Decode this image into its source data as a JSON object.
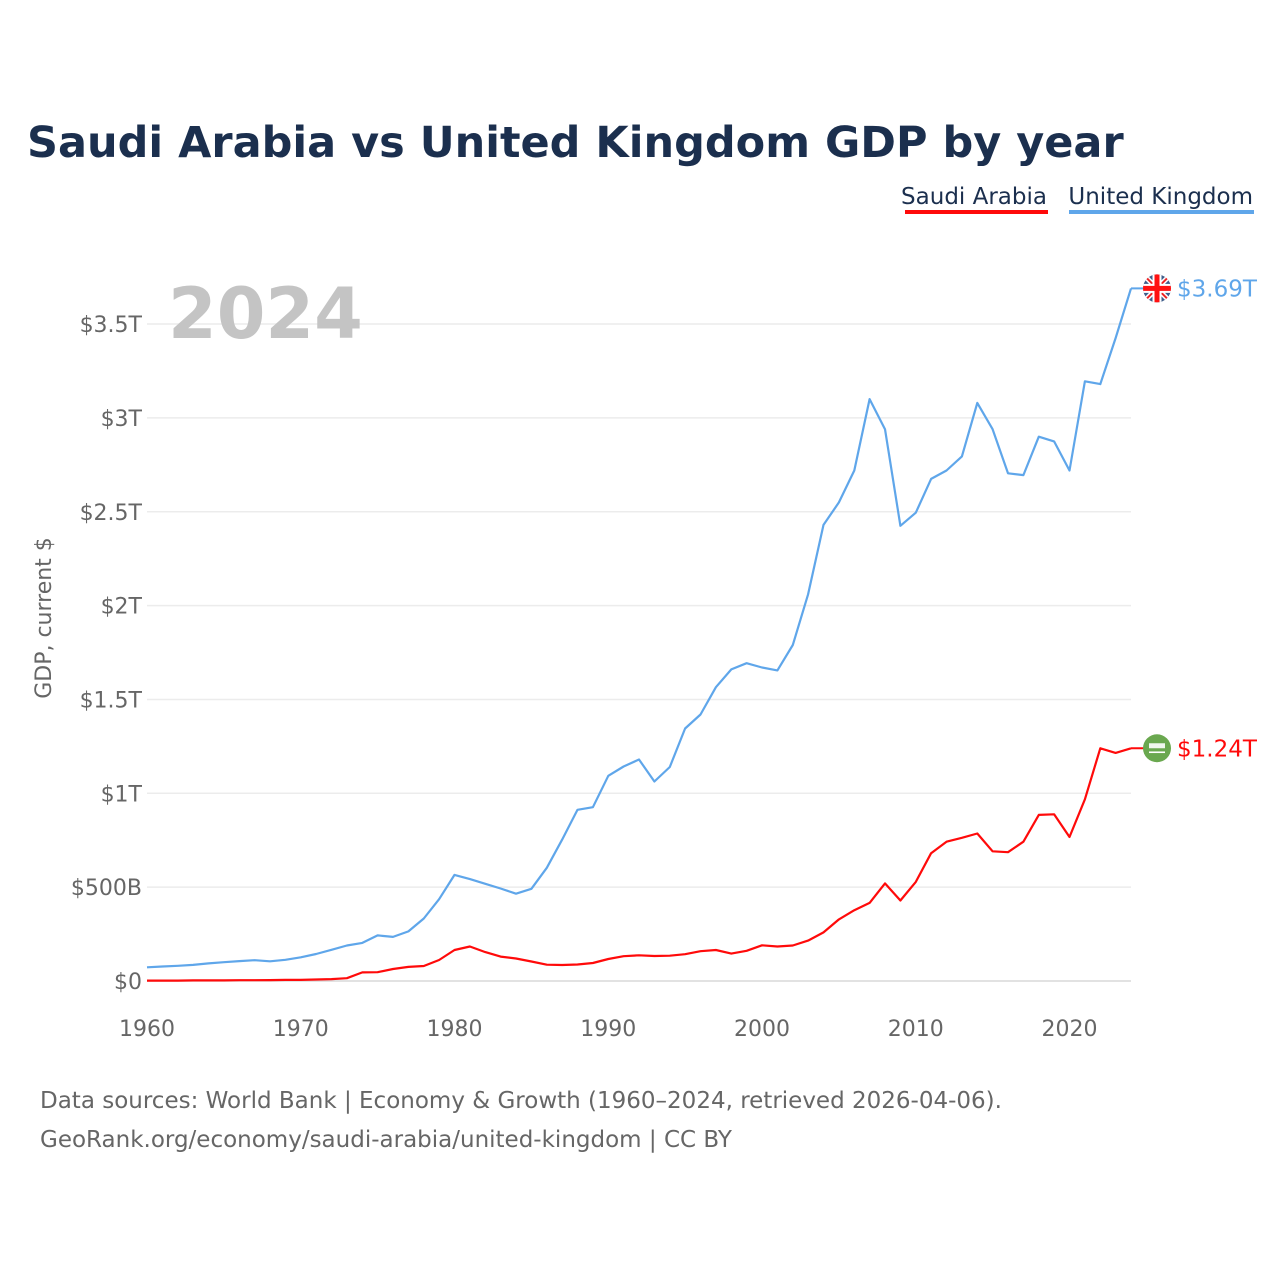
{
  "chart_data": {
    "type": "line",
    "title": "Saudi Arabia vs United Kingdom GDP by year",
    "xlabel": "",
    "ylabel": "GDP, current $",
    "xlim": [
      1960,
      2024
    ],
    "ylim": [
      0,
      3.5
    ],
    "y_unit": "trillion USD",
    "grid": true,
    "legend_placement": "top-right",
    "year_label": "2024",
    "x_ticks": [
      1960,
      1970,
      1980,
      1990,
      2000,
      2010,
      2020
    ],
    "x_tick_labels": [
      "1960",
      "1970",
      "1980",
      "1990",
      "2000",
      "2010",
      "2020"
    ],
    "y_ticks": [
      0,
      0.5,
      1,
      1.5,
      2,
      2.5,
      3,
      3.5
    ],
    "y_tick_labels": [
      "$0",
      "$500B",
      "$1T",
      "$1.5T",
      "$2T",
      "$2.5T",
      "$3T",
      "$3.5T"
    ],
    "x": [
      1960,
      1961,
      1962,
      1963,
      1964,
      1965,
      1966,
      1967,
      1968,
      1969,
      1970,
      1971,
      1972,
      1973,
      1974,
      1975,
      1976,
      1977,
      1978,
      1979,
      1980,
      1981,
      1982,
      1983,
      1984,
      1985,
      1986,
      1987,
      1988,
      1989,
      1990,
      1991,
      1992,
      1993,
      1994,
      1995,
      1996,
      1997,
      1998,
      1999,
      2000,
      2001,
      2002,
      2003,
      2004,
      2005,
      2006,
      2007,
      2008,
      2009,
      2010,
      2011,
      2012,
      2013,
      2014,
      2015,
      2016,
      2017,
      2018,
      2019,
      2020,
      2021,
      2022,
      2023,
      2024
    ],
    "series": [
      {
        "name": "Saudi Arabia",
        "color": "#ff0a0a",
        "end_label": "$1.24T",
        "flag_icon": "saudi-flag",
        "values": [
          0.002,
          0.002,
          0.002,
          0.003,
          0.003,
          0.003,
          0.004,
          0.004,
          0.005,
          0.006,
          0.006,
          0.008,
          0.01,
          0.015,
          0.046,
          0.047,
          0.064,
          0.075,
          0.08,
          0.112,
          0.165,
          0.184,
          0.154,
          0.13,
          0.12,
          0.104,
          0.087,
          0.085,
          0.088,
          0.096,
          0.117,
          0.132,
          0.137,
          0.133,
          0.135,
          0.143,
          0.159,
          0.165,
          0.146,
          0.161,
          0.19,
          0.184,
          0.189,
          0.215,
          0.259,
          0.328,
          0.377,
          0.416,
          0.52,
          0.429,
          0.528,
          0.681,
          0.742,
          0.763,
          0.786,
          0.691,
          0.686,
          0.742,
          0.885,
          0.888,
          0.767,
          0.968,
          1.24,
          1.215,
          1.24
        ]
      },
      {
        "name": "United Kingdom",
        "color": "#5fa6ea",
        "end_label": "$3.69T",
        "flag_icon": "uk-flag",
        "values": [
          0.073,
          0.077,
          0.081,
          0.086,
          0.094,
          0.1,
          0.106,
          0.111,
          0.105,
          0.113,
          0.126,
          0.144,
          0.166,
          0.189,
          0.203,
          0.243,
          0.235,
          0.264,
          0.333,
          0.436,
          0.565,
          0.543,
          0.518,
          0.493,
          0.465,
          0.491,
          0.603,
          0.753,
          0.912,
          0.926,
          1.093,
          1.143,
          1.18,
          1.063,
          1.14,
          1.345,
          1.42,
          1.565,
          1.66,
          1.693,
          1.67,
          1.655,
          1.79,
          2.06,
          2.43,
          2.55,
          2.72,
          3.1,
          2.94,
          2.425,
          2.495,
          2.675,
          2.72,
          2.795,
          3.08,
          2.94,
          2.705,
          2.695,
          2.9,
          2.875,
          2.72,
          3.195,
          3.18,
          3.425,
          3.69
        ]
      }
    ]
  },
  "footer": {
    "line1": "Data sources: World Bank | Economy & Growth (1960–2024, retrieved 2026-04-06).",
    "line2": "GeoRank.org/economy/saudi-arabia/united-kingdom | CC BY"
  }
}
